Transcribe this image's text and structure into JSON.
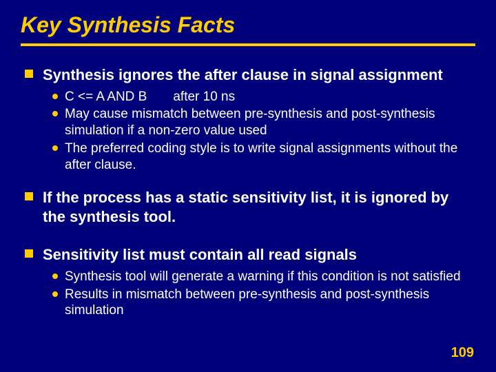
{
  "colors": {
    "background": "#00007a",
    "title": "#ffcc00",
    "underline": "#ffcc00",
    "body_text": "#ffffff",
    "square_bullet": "#ffcc00",
    "round_bullet": "#ffcc00",
    "page_number": "#ffcc00"
  },
  "title": "Key Synthesis Facts",
  "bullets": [
    {
      "text": "Synthesis ignores the after clause in signal assignment",
      "sub": [
        "C <= A AND B  after 10 ns",
        "May cause mismatch between pre-synthesis and post-synthesis simulation if a non-zero value used",
        "The preferred coding style is to write signal assignments without the after clause."
      ]
    },
    {
      "text": "If the process has a static sensitivity list, it is ignored by the synthesis tool.",
      "sub": []
    },
    {
      "text": "Sensitivity list must contain all read signals",
      "sub": [
        "Synthesis tool will generate a warning if this condition is not satisfied",
        "Results in mismatch between pre-synthesis and post-synthesis simulation"
      ]
    }
  ],
  "page_number": "109"
}
